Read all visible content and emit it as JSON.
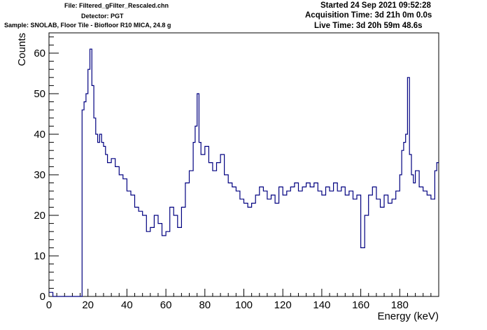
{
  "header": {
    "file": "File: Filtered_gFilter_Rescaled.chn",
    "detector": "Detector: PGT",
    "sample": "Sample: SNOLAB, Floor Tile - Biofloor R10 MICA, 24.8 g",
    "started": "Started 24 Sep 2021 09:52:28",
    "acquisition": "Acquisition Time: 3d 21h 0m 0.0s",
    "live": "Live Time: 3d 20h 59m 48.6s"
  },
  "colors": {
    "series": "#000080",
    "axis": "#000000",
    "background": "#ffffff"
  },
  "chart_data": {
    "type": "line",
    "style": "step histogram",
    "xlabel": "Energy (keV)",
    "ylabel": "Counts",
    "xlim": [
      0,
      200
    ],
    "ylim": [
      0,
      65
    ],
    "xticks": [
      "0",
      "20",
      "40",
      "60",
      "80",
      "100",
      "120",
      "140",
      "160",
      "180"
    ],
    "yticks": [
      "0",
      "10",
      "20",
      "30",
      "40",
      "50",
      "60"
    ],
    "grid": false,
    "legend": "none",
    "series": [
      {
        "x": [
          0,
          2,
          4,
          6,
          8,
          10,
          12,
          14,
          16,
          17,
          18,
          19,
          20,
          21,
          22,
          23,
          24,
          25,
          26,
          27,
          28,
          29,
          30,
          32,
          34,
          36,
          38,
          40,
          42,
          44,
          46,
          48,
          50,
          52,
          54,
          56,
          58,
          60,
          62,
          64,
          66,
          68,
          70,
          72,
          74,
          75,
          76,
          77,
          78,
          80,
          82,
          84,
          86,
          88,
          90,
          92,
          94,
          96,
          98,
          100,
          102,
          104,
          106,
          108,
          110,
          112,
          114,
          116,
          118,
          120,
          122,
          124,
          126,
          128,
          130,
          132,
          134,
          136,
          138,
          140,
          142,
          144,
          146,
          148,
          150,
          152,
          154,
          156,
          158,
          160,
          162,
          164,
          166,
          168,
          170,
          172,
          174,
          176,
          178,
          180,
          181,
          182,
          183,
          184,
          185,
          186,
          187,
          188,
          190,
          192,
          194,
          196,
          198,
          199
        ],
        "y": [
          1,
          0,
          0,
          0,
          0,
          0,
          0,
          0,
          0,
          46,
          48,
          50,
          56,
          61,
          52,
          44,
          40,
          38,
          40,
          38,
          37,
          35,
          33,
          34,
          32,
          30,
          29,
          26,
          25,
          22,
          21,
          20,
          16,
          17,
          20,
          18,
          15,
          16,
          22,
          20,
          17,
          22,
          28,
          31,
          38,
          42,
          50,
          38,
          35,
          37,
          33,
          31,
          33,
          35,
          30,
          28,
          27,
          26,
          24,
          23,
          22,
          23,
          25,
          27,
          26,
          24,
          25,
          23,
          27,
          25,
          26,
          27,
          28,
          26,
          27,
          28,
          27,
          28,
          26,
          25,
          27,
          26,
          28,
          26,
          27,
          25,
          26,
          24,
          25,
          12,
          20,
          25,
          27,
          24,
          22,
          25,
          23,
          24,
          26,
          30,
          36,
          38,
          40,
          54,
          35,
          30,
          28,
          31,
          27,
          26,
          25,
          24,
          31,
          33
        ]
      }
    ]
  }
}
